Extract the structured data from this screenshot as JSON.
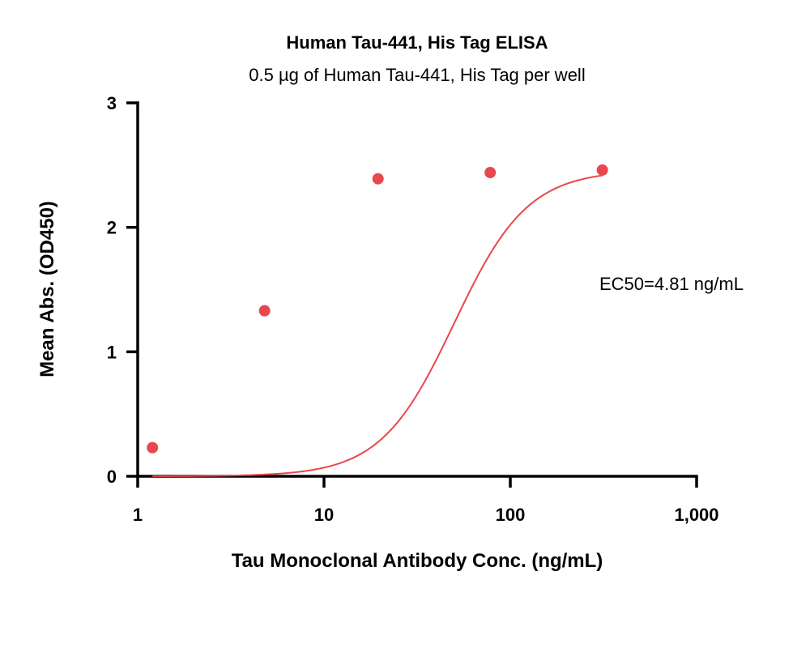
{
  "chart_data": {
    "type": "scatter",
    "title": "Human Tau-441, His Tag ELISA",
    "subtitle": "0.5 µg of Human Tau-441, His Tag per well",
    "xlabel": "Tau Monoclonal Antibody Conc. (ng/mL)",
    "ylabel": "Mean Abs. (OD450)",
    "x_scale": "log",
    "xlim": [
      1,
      1000
    ],
    "ylim": [
      0,
      3
    ],
    "x_ticks": [
      1,
      10,
      100,
      1000
    ],
    "x_tick_labels": [
      "1",
      "10",
      "100",
      "1,000"
    ],
    "y_ticks": [
      0,
      1,
      2,
      3
    ],
    "y_tick_labels": [
      "0",
      "1",
      "2",
      "3"
    ],
    "grid": false,
    "series": [
      {
        "x": [
          1.2,
          4.8,
          19.5,
          78,
          312
        ],
        "y": [
          0.23,
          1.33,
          2.39,
          2.44,
          2.46
        ],
        "fit": "4-parameter logistic",
        "color": "#e8474c"
      }
    ],
    "annotations": [
      {
        "text": "EC50=4.81 ng/mL"
      }
    ]
  }
}
